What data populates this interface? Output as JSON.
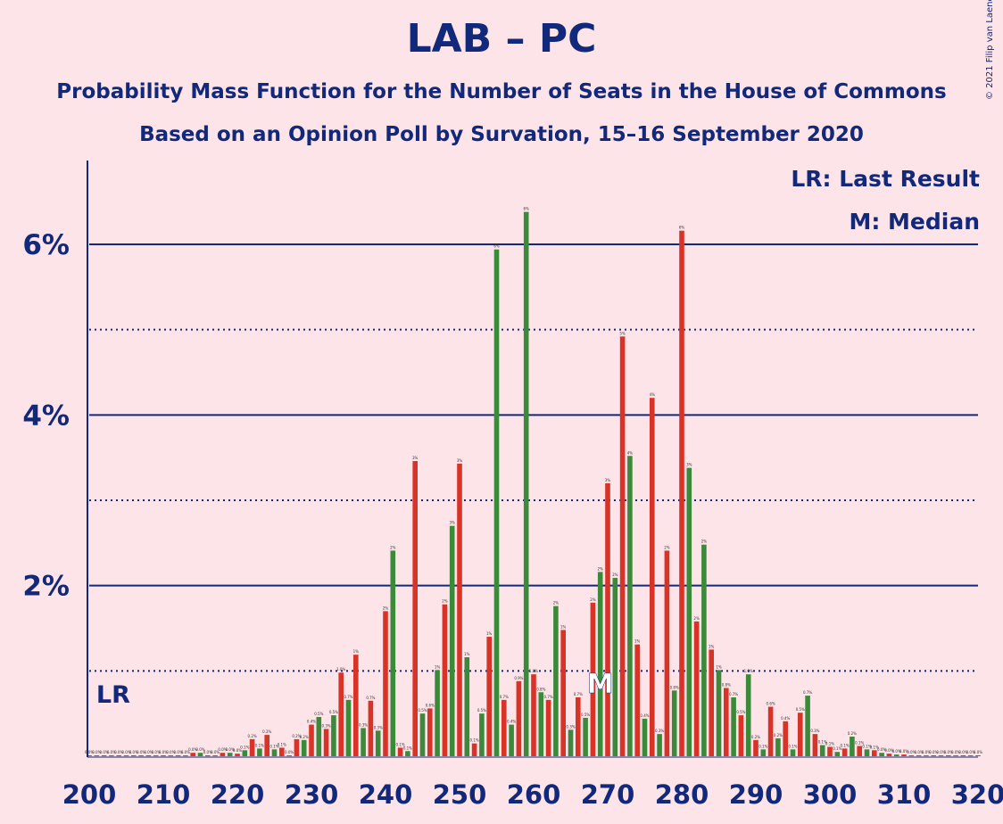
{
  "header": {
    "title": "LAB – PC",
    "subtitle1": "Probability Mass Function for the Number of Seats in the House of Commons",
    "subtitle2": "Based on an Opinion Poll by Survation, 15–16 September 2020",
    "copyright": "© 2021 Filip van Laenen"
  },
  "legend": {
    "last_result": "LR: Last Result",
    "median": "M: Median"
  },
  "markers": {
    "last_result_label": "LR",
    "last_result_seat": 203,
    "median_label": "M",
    "median_seat": 269
  },
  "colors": {
    "background": "#fde4e8",
    "text": "#12287a",
    "bar_red": "#d93328",
    "bar_green": "#3a8a3a",
    "grid": "#12287a"
  },
  "chart_data": {
    "type": "bar",
    "xlabel": "",
    "ylabel": "",
    "xlim": [
      200,
      320
    ],
    "ylim": [
      0,
      7
    ],
    "x_ticks": [
      "200",
      "210",
      "220",
      "230",
      "240",
      "250",
      "260",
      "270",
      "280",
      "290",
      "300",
      "310",
      "320"
    ],
    "y_ticks": [
      "2%",
      "4%",
      "6%"
    ],
    "grid": "solid at 2%, 4%, 6%; dotted at 1%, 3%, 5%",
    "legend_position": "top-right",
    "series": [
      {
        "name": "LAB",
        "color": "#d93328",
        "x": [
          200,
          202,
          204,
          206,
          208,
          210,
          212,
          214,
          216,
          218,
          220,
          222,
          224,
          226,
          228,
          230,
          232,
          234,
          236,
          238,
          240,
          242,
          244,
          246,
          248,
          250,
          252,
          254,
          256,
          258,
          260,
          262,
          264,
          266,
          268,
          270,
          272,
          274,
          276,
          278,
          280,
          282,
          284,
          286,
          288,
          290,
          292,
          294,
          296,
          298,
          300,
          302,
          304,
          306,
          308,
          310,
          312,
          314,
          316,
          318,
          320
        ],
        "values": [
          0,
          0,
          0,
          0,
          0,
          0,
          0,
          0.04,
          0.01,
          0.04,
          0.03,
          0.2,
          0.25,
          0.1,
          0.2,
          0.37,
          0.32,
          0.98,
          1.19,
          0.65,
          1.7,
          0.1,
          3.46,
          0.56,
          1.78,
          3.43,
          0.15,
          1.4,
          0.66,
          0.88,
          0.96,
          0.66,
          1.48,
          0.69,
          1.8,
          3.2,
          4.92,
          1.31,
          4.2,
          2.41,
          6.16,
          1.58,
          1.25,
          0.8,
          0.48,
          0.19,
          0.58,
          0.41,
          0.51,
          0.26,
          0.11,
          0.09,
          0.12,
          0.07,
          0.03,
          0.02,
          0.01,
          0.01,
          0.01,
          0,
          0
        ]
      },
      {
        "name": "PC",
        "color": "#3a8a3a",
        "x": [
          201,
          203,
          205,
          207,
          209,
          211,
          213,
          215,
          217,
          219,
          221,
          223,
          225,
          227,
          229,
          231,
          233,
          235,
          237,
          239,
          241,
          243,
          245,
          247,
          249,
          251,
          253,
          255,
          257,
          259,
          261,
          263,
          265,
          267,
          269,
          271,
          273,
          275,
          277,
          279,
          281,
          283,
          285,
          287,
          289,
          291,
          293,
          295,
          297,
          299,
          301,
          303,
          305,
          307,
          309,
          311,
          313,
          315,
          317,
          319
        ],
        "values": [
          0,
          0,
          0,
          0,
          0,
          0,
          0,
          0.04,
          0.01,
          0.04,
          0.07,
          0.09,
          0.08,
          0.01,
          0.19,
          0.46,
          0.48,
          0.66,
          0.33,
          0.3,
          2.41,
          0.06,
          0.5,
          1.01,
          2.7,
          1.16,
          0.5,
          5.94,
          0.37,
          6.38,
          0.75,
          1.76,
          0.31,
          0.45,
          2.16,
          2.09,
          3.52,
          0.44,
          0.26,
          0.77,
          3.38,
          2.48,
          1.01,
          0.69,
          0.96,
          0.08,
          0.21,
          0.08,
          0.71,
          0.13,
          0.05,
          0.23,
          0.08,
          0.04,
          0.02,
          0.01,
          0.01,
          0.01,
          0.01,
          0.01
        ]
      }
    ]
  }
}
